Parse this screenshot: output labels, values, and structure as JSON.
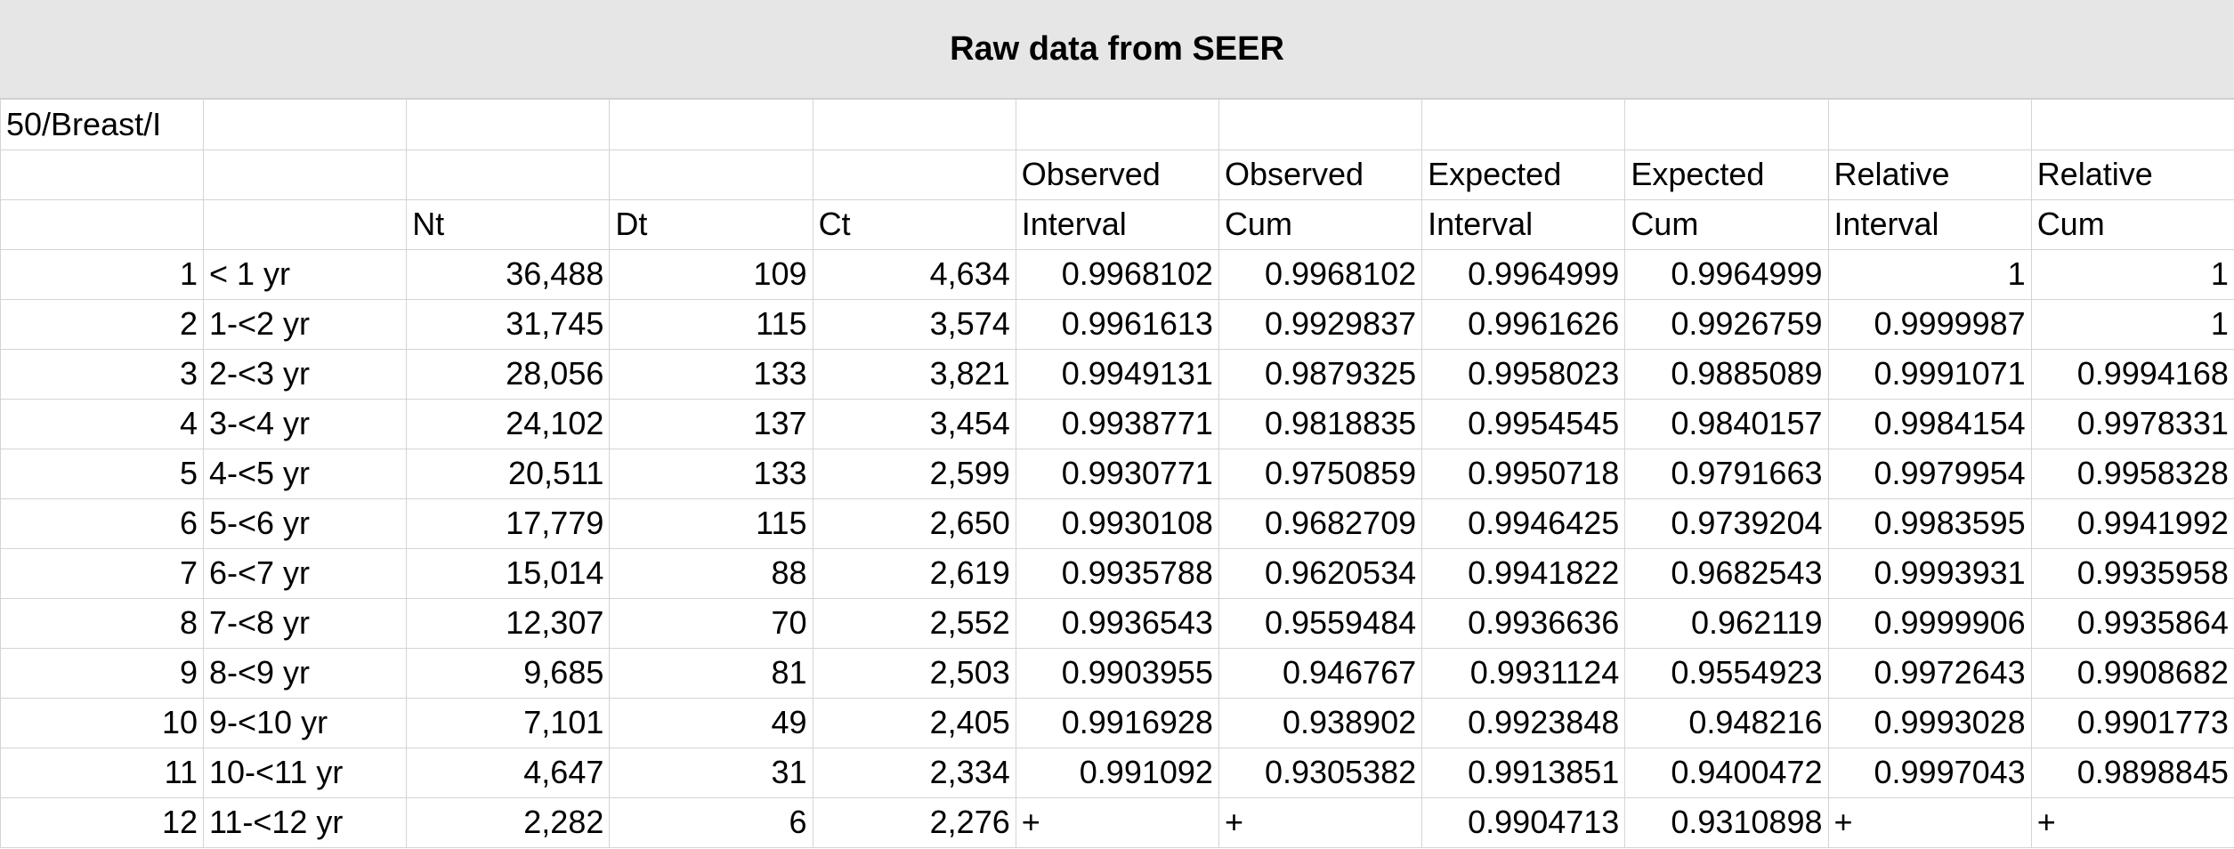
{
  "title": "Raw data from SEER",
  "rows": [
    [
      "50/Breast/I",
      "",
      "",
      "",
      "",
      "",
      "",
      "",
      "",
      "",
      ""
    ],
    [
      "",
      "",
      "",
      "",
      "",
      "Observed",
      "Observed",
      "Expected",
      "Expected",
      "Relative",
      "Relative"
    ],
    [
      "",
      "",
      "Nt",
      "Dt",
      "Ct",
      "Interval",
      "Cum",
      "Interval",
      "Cum",
      "Interval",
      "Cum"
    ],
    [
      "1",
      "< 1 yr",
      "36,488",
      "109",
      "4,634",
      "0.9968102",
      "0.9968102",
      "0.9964999",
      "0.9964999",
      "1",
      "1"
    ],
    [
      "2",
      "1-<2 yr",
      "31,745",
      "115",
      "3,574",
      "0.9961613",
      "0.9929837",
      "0.9961626",
      "0.9926759",
      "0.9999987",
      "1"
    ],
    [
      "3",
      "2-<3 yr",
      "28,056",
      "133",
      "3,821",
      "0.9949131",
      "0.9879325",
      "0.9958023",
      "0.9885089",
      "0.9991071",
      "0.9994168"
    ],
    [
      "4",
      "3-<4 yr",
      "24,102",
      "137",
      "3,454",
      "0.9938771",
      "0.9818835",
      "0.9954545",
      "0.9840157",
      "0.9984154",
      "0.9978331"
    ],
    [
      "5",
      "4-<5 yr",
      "20,511",
      "133",
      "2,599",
      "0.9930771",
      "0.9750859",
      "0.9950718",
      "0.9791663",
      "0.9979954",
      "0.9958328"
    ],
    [
      "6",
      "5-<6 yr",
      "17,779",
      "115",
      "2,650",
      "0.9930108",
      "0.9682709",
      "0.9946425",
      "0.9739204",
      "0.9983595",
      "0.9941992"
    ],
    [
      "7",
      "6-<7 yr",
      "15,014",
      "88",
      "2,619",
      "0.9935788",
      "0.9620534",
      "0.9941822",
      "0.9682543",
      "0.9993931",
      "0.9935958"
    ],
    [
      "8",
      "7-<8 yr",
      "12,307",
      "70",
      "2,552",
      "0.9936543",
      "0.9559484",
      "0.9936636",
      "0.962119",
      "0.9999906",
      "0.9935864"
    ],
    [
      "9",
      "8-<9 yr",
      "9,685",
      "81",
      "2,503",
      "0.9903955",
      "0.946767",
      "0.9931124",
      "0.9554923",
      "0.9972643",
      "0.9908682"
    ],
    [
      "10",
      "9-<10 yr",
      "7,101",
      "49",
      "2,405",
      "0.9916928",
      "0.938902",
      "0.9923848",
      "0.948216",
      "0.9993028",
      "0.9901773"
    ],
    [
      "11",
      "10-<11 yr",
      "4,647",
      "31",
      "2,334",
      "0.991092",
      "0.9305382",
      "0.9913851",
      "0.9400472",
      "0.9997043",
      "0.9898845"
    ],
    [
      "12",
      "11-<12 yr",
      "2,282",
      "6",
      "2,276",
      "+",
      "+",
      "0.9904713",
      "0.9310898",
      "+",
      "+"
    ]
  ]
}
